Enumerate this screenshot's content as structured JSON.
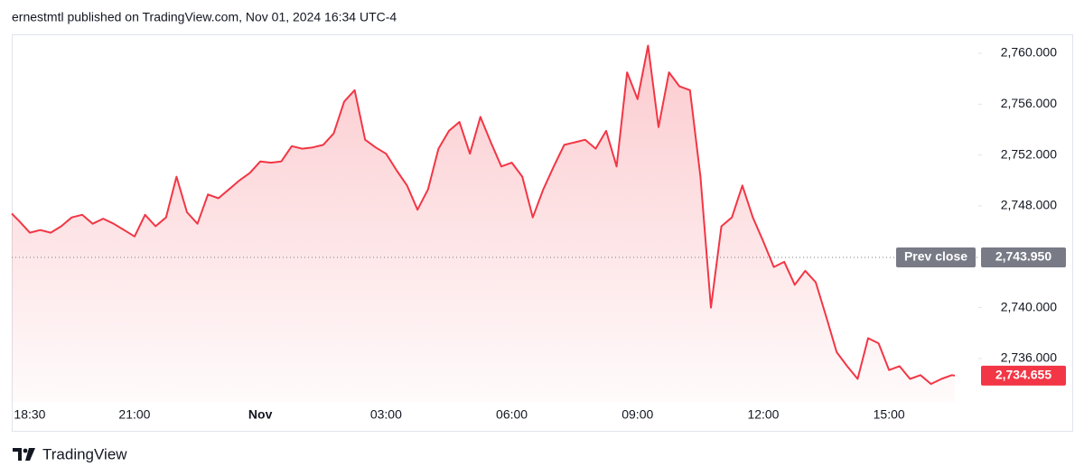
{
  "header": {
    "title": "ernestmtl published on TradingView.com, Nov 01, 2024 16:34 UTC-4"
  },
  "chart_data": {
    "type": "area",
    "color": "#f23645",
    "x": [
      18.07,
      18.25,
      18.5,
      18.75,
      19,
      19.25,
      19.5,
      19.75,
      20,
      20.25,
      20.5,
      20.75,
      21,
      21.25,
      21.5,
      21.75,
      22,
      22.25,
      22.5,
      22.75,
      23,
      23.25,
      23.5,
      23.75,
      24,
      24.25,
      24.5,
      24.75,
      25,
      25.25,
      25.5,
      25.75,
      26,
      26.25,
      26.5,
      26.75,
      27,
      27.25,
      27.5,
      27.75,
      28,
      28.25,
      28.5,
      28.75,
      29,
      29.25,
      29.5,
      29.75,
      30,
      30.25,
      30.5,
      30.75,
      31,
      31.25,
      31.5,
      31.75,
      32,
      32.25,
      32.5,
      32.75,
      33,
      33.25,
      33.5,
      33.75,
      34,
      34.25,
      34.5,
      34.75,
      35,
      35.25,
      35.5,
      35.75,
      36,
      36.25,
      36.5,
      36.75,
      37,
      37.25,
      37.5,
      37.75,
      38,
      38.25,
      38.5,
      38.75,
      39,
      39.25,
      39.5,
      39.75,
      40,
      40.25,
      40.5,
      40.57
    ],
    "values": [
      2747.4,
      2746.8,
      2745.9,
      2746.1,
      2745.9,
      2746.4,
      2747.1,
      2747.3,
      2746.6,
      2747.0,
      2746.6,
      2746.1,
      2745.6,
      2747.3,
      2746.4,
      2747.1,
      2750.3,
      2747.5,
      2746.6,
      2748.9,
      2748.6,
      2749.3,
      2750.0,
      2750.6,
      2751.5,
      2751.4,
      2751.5,
      2752.7,
      2752.5,
      2752.6,
      2752.8,
      2753.7,
      2756.2,
      2757.1,
      2753.2,
      2752.6,
      2752.1,
      2750.8,
      2749.6,
      2747.7,
      2749.3,
      2752.5,
      2753.9,
      2754.6,
      2752.1,
      2755.0,
      2753.0,
      2751.1,
      2751.4,
      2750.3,
      2747.1,
      2749.3,
      2751.1,
      2752.8,
      2753.0,
      2753.2,
      2752.5,
      2753.9,
      2751.1,
      2758.5,
      2756.4,
      2760.6,
      2754.2,
      2758.5,
      2757.4,
      2757.1,
      2750.3,
      2740.0,
      2746.4,
      2747.1,
      2749.6,
      2747.1,
      2745.2,
      2743.2,
      2743.6,
      2741.8,
      2742.9,
      2742.0,
      2739.3,
      2736.5,
      2735.4,
      2734.4,
      2737.6,
      2737.2,
      2735.1,
      2735.4,
      2734.4,
      2734.7,
      2734.0,
      2734.4,
      2734.7,
      2734.655
    ],
    "xlim": [
      18.07,
      41.13
    ],
    "xticks": [
      {
        "value": 18.5,
        "label": "18:30"
      },
      {
        "value": 21,
        "label": "21:00"
      },
      {
        "value": 24,
        "label": "Nov"
      },
      {
        "value": 27,
        "label": "03:00"
      },
      {
        "value": 30,
        "label": "06:00"
      },
      {
        "value": 33,
        "label": "09:00"
      },
      {
        "value": 36,
        "label": "12:00"
      },
      {
        "value": 39,
        "label": "15:00"
      }
    ],
    "ylim": [
      2732.59,
      2761.49
    ],
    "yticks": [
      {
        "value": 2736,
        "label": "2,736.000"
      },
      {
        "value": 2740,
        "label": "2,740.000"
      },
      {
        "value": 2748,
        "label": "2,748.000"
      },
      {
        "value": 2752,
        "label": "2,752.000"
      },
      {
        "value": 2756,
        "label": "2,756.000"
      },
      {
        "value": 2760,
        "label": "2,760.000"
      }
    ],
    "prev_close": {
      "name": "Prev close",
      "value": 2743.95,
      "label": "2,743.950",
      "color": "#787b86"
    },
    "last_price": {
      "value": 2734.655,
      "label": "2,734.655"
    }
  },
  "footer": {
    "brand": "TradingView"
  }
}
